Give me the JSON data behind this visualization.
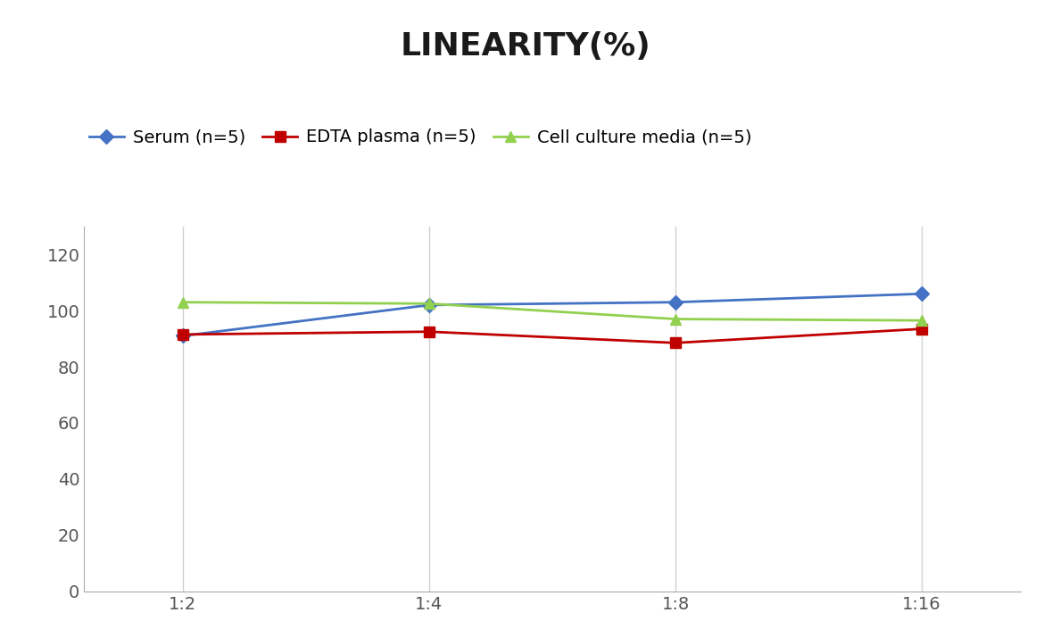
{
  "title": "LINEARITY(%)",
  "x_labels": [
    "1:2",
    "1:4",
    "1:8",
    "1:16"
  ],
  "x_positions": [
    0,
    1,
    2,
    3
  ],
  "series": [
    {
      "label": "Serum (n=5)",
      "values": [
        91,
        102,
        103,
        106
      ],
      "color": "#4472C4",
      "marker": "D",
      "markersize": 8
    },
    {
      "label": "EDTA plasma (n=5)",
      "values": [
        91.5,
        92.5,
        88.5,
        93.5
      ],
      "color": "#C00000",
      "marker": "s",
      "markersize": 8
    },
    {
      "label": "Cell culture media (n=5)",
      "values": [
        103,
        102.5,
        97,
        96.5
      ],
      "color": "#92D050",
      "marker": "^",
      "markersize": 9
    }
  ],
  "ylim": [
    0,
    130
  ],
  "yticks": [
    0,
    20,
    40,
    60,
    80,
    100,
    120
  ],
  "background_color": "#ffffff",
  "grid_color": "#d0d0d0",
  "title_fontsize": 26,
  "legend_fontsize": 14,
  "tick_fontsize": 14
}
